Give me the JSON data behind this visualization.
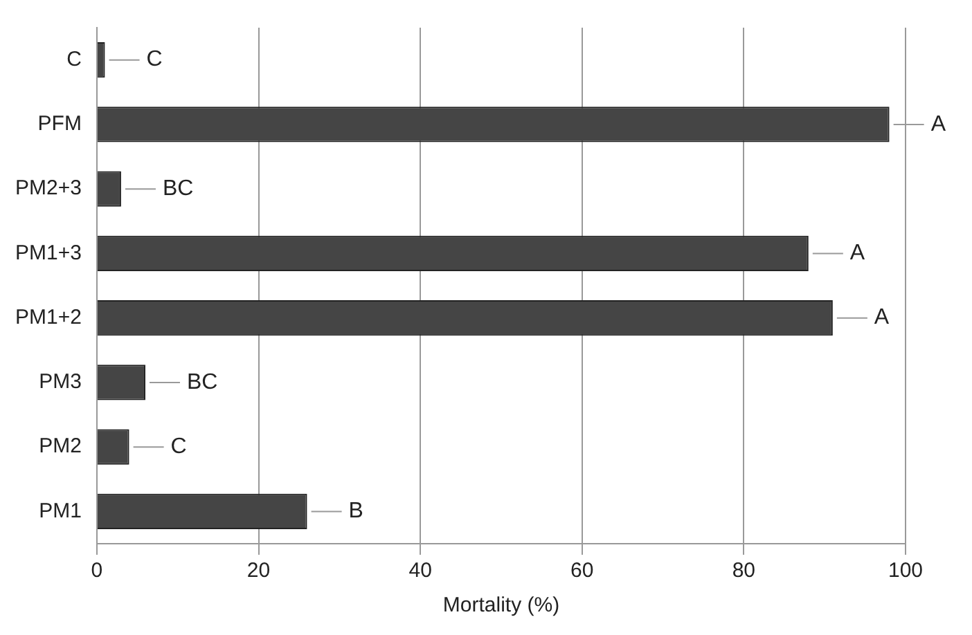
{
  "chart_data": {
    "type": "bar",
    "orientation": "horizontal",
    "xlabel": "Mortality (%)",
    "categories": [
      "C",
      "PFM",
      "PM2+3",
      "PM1+3",
      "PM1+2",
      "PM3",
      "PM2",
      "PM1"
    ],
    "values": [
      1,
      98,
      3,
      88,
      91,
      6,
      4,
      26
    ],
    "color": "#454545",
    "xlim": [
      0,
      100
    ],
    "xticks": [
      0,
      20,
      40,
      60,
      80,
      100
    ],
    "grid": "x",
    "annotations": [
      {
        "text": "C",
        "x": 1,
        "y": "C"
      },
      {
        "text": "A",
        "x": 98,
        "y": "PFM"
      },
      {
        "text": "BC",
        "x": 3,
        "y": "PM2+3"
      },
      {
        "text": "A",
        "x": 88,
        "y": "PM1+3"
      },
      {
        "text": "A",
        "x": 91,
        "y": "PM1+2"
      },
      {
        "text": "BC",
        "x": 6,
        "y": "PM3"
      },
      {
        "text": "C",
        "x": 4,
        "y": "PM2"
      },
      {
        "text": "B",
        "x": 26,
        "y": "PM1"
      }
    ]
  }
}
